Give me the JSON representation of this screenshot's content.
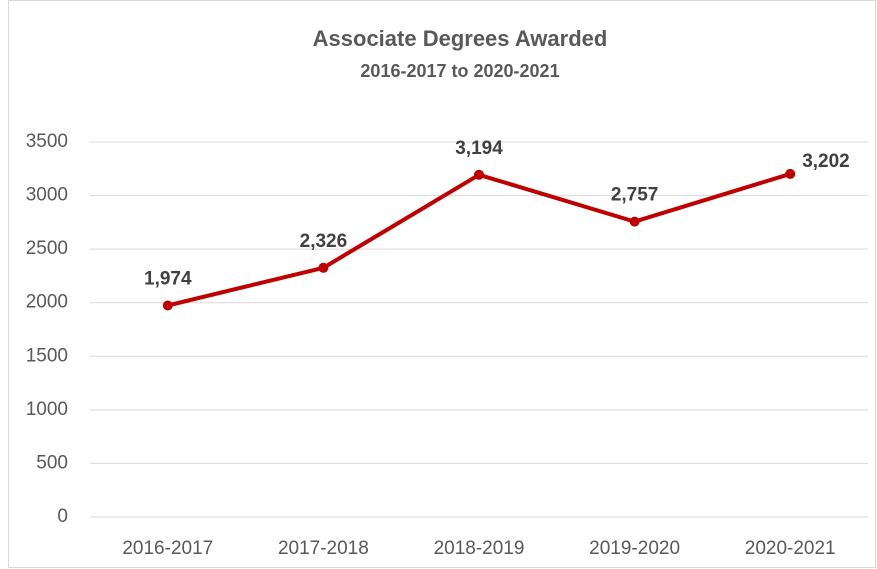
{
  "chart_data": {
    "type": "line",
    "title": "Associate Degrees Awarded",
    "subtitle": "2016-2017 to 2020-2021",
    "categories": [
      "2016-2017",
      "2017-2018",
      "2018-2019",
      "2019-2020",
      "2020-2021"
    ],
    "series": [
      {
        "name": "Associate Degrees",
        "color": "#c00000",
        "values": [
          1974,
          2326,
          3194,
          2757,
          3202
        ],
        "value_labels": [
          "1,974",
          "2,326",
          "3,194",
          "2,757",
          "3,202"
        ]
      }
    ],
    "ylim": [
      0,
      3500
    ],
    "yticks": [
      0,
      500,
      1000,
      1500,
      2000,
      2500,
      3000,
      3500
    ],
    "grid": true
  }
}
